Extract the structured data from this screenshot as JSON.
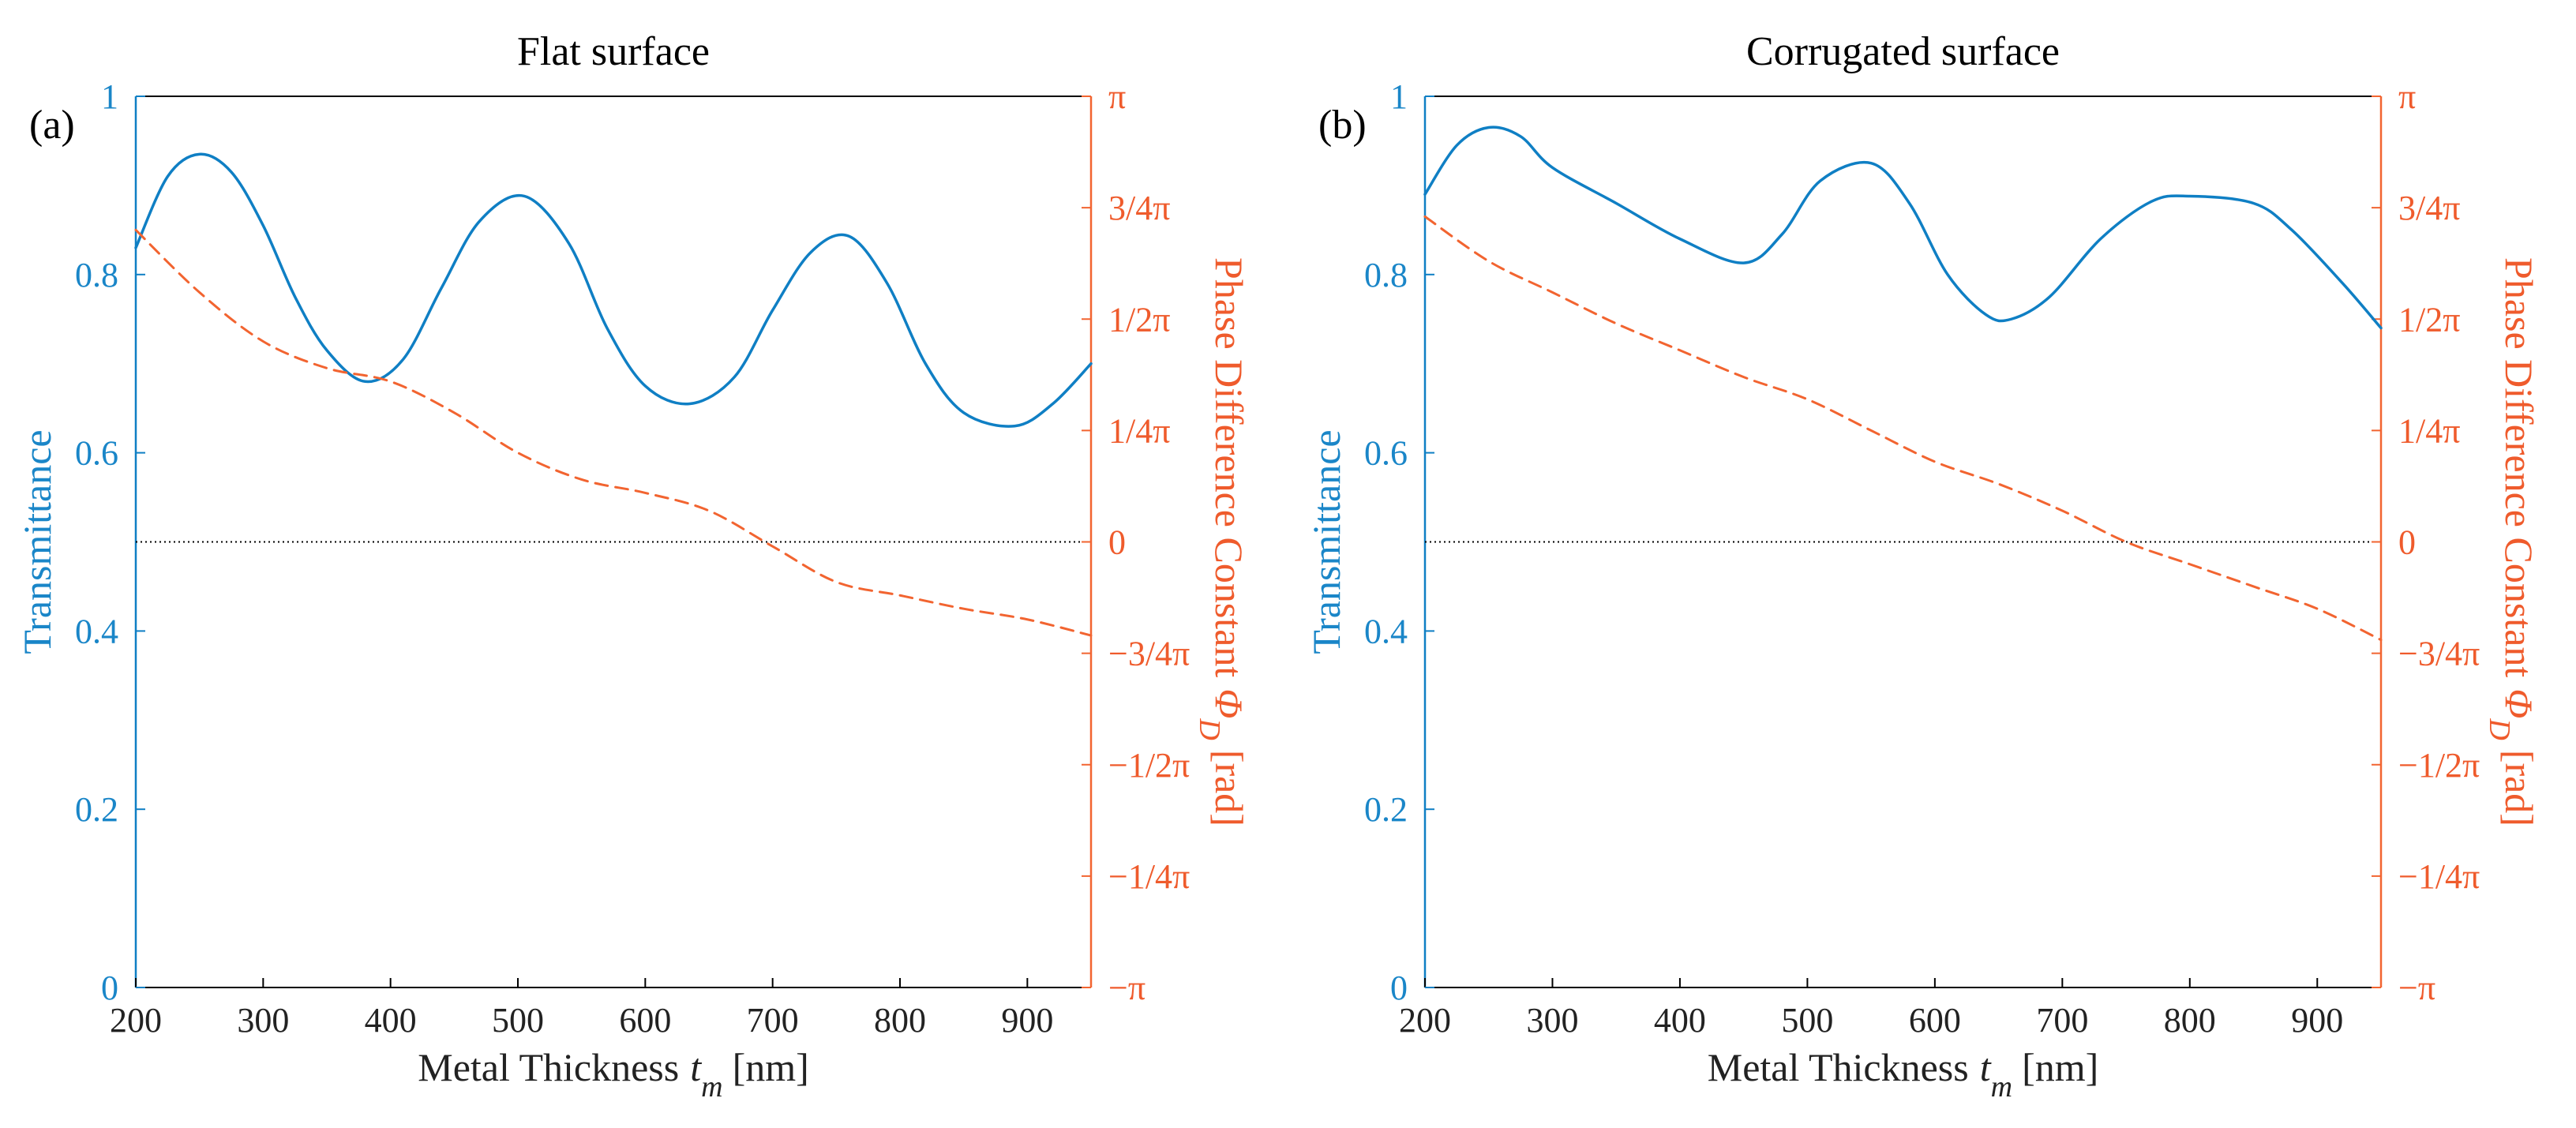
{
  "colors": {
    "transmittance": "#0f7fc4",
    "phase": "#f26430",
    "reference_line": "#000000",
    "frame": "#000000"
  },
  "chart_data": [
    {
      "type": "line",
      "panel_label": "(a)",
      "title": "Flat surface",
      "xlabel": "Metal Thickness",
      "xlabel_var": "t",
      "xlabel_sub": "m",
      "xlabel_unit": "[nm]",
      "xlim": [
        200,
        950
      ],
      "xticks": [
        200,
        300,
        400,
        500,
        600,
        700,
        800,
        900
      ],
      "ylabel_left": "Transmittance",
      "ylim_left": [
        0,
        1
      ],
      "yticks_left": [
        "0",
        "0.2",
        "0.4",
        "0.6",
        "0.8",
        "1"
      ],
      "ylabel_right": "Phase Difference Constant",
      "ylabel_right_var": "Φ",
      "ylabel_right_sub": "D",
      "ylabel_right_unit": "[rad]",
      "yticks_right": [
        "−π",
        "−1/4π",
        "−1/2π",
        "−3/4π",
        "0",
        "1/4π",
        "1/2π",
        "3/4π",
        "π"
      ],
      "reference_line": 0.5,
      "series": [
        {
          "name": "Transmittance",
          "axis": "left",
          "style": "solid",
          "x": [
            200,
            225,
            250,
            275,
            300,
            325,
            350,
            380,
            410,
            440,
            470,
            505,
            540,
            570,
            600,
            635,
            670,
            700,
            730,
            760,
            790,
            820,
            850,
            890,
            920,
            950
          ],
          "y": [
            0.83,
            0.91,
            0.935,
            0.915,
            0.855,
            0.775,
            0.715,
            0.68,
            0.705,
            0.785,
            0.86,
            0.888,
            0.835,
            0.74,
            0.675,
            0.655,
            0.685,
            0.76,
            0.825,
            0.843,
            0.79,
            0.7,
            0.645,
            0.63,
            0.655,
            0.7
          ]
        },
        {
          "name": "Phase Difference Constant",
          "axis": "right",
          "style": "dashed",
          "x": [
            200,
            250,
            300,
            350,
            400,
            450,
            500,
            550,
            600,
            650,
            700,
            750,
            800,
            850,
            900,
            950
          ],
          "y": [
            0.85,
            0.78,
            0.725,
            0.695,
            0.68,
            0.645,
            0.6,
            0.57,
            0.555,
            0.535,
            0.495,
            0.455,
            0.44,
            0.425,
            0.413,
            0.395
          ]
        }
      ]
    },
    {
      "type": "line",
      "panel_label": "(b)",
      "title": "Corrugated surface",
      "xlabel": "Metal Thickness",
      "xlabel_var": "t",
      "xlabel_sub": "m",
      "xlabel_unit": "[nm]",
      "xlim": [
        200,
        950
      ],
      "xticks": [
        200,
        300,
        400,
        500,
        600,
        700,
        800,
        900
      ],
      "ylabel_left": "Transmittance",
      "ylim_left": [
        0,
        1
      ],
      "yticks_left": [
        "0",
        "0.2",
        "0.4",
        "0.6",
        "0.8",
        "1"
      ],
      "ylabel_right": "Phase Difference Constant",
      "ylabel_right_var": "Φ",
      "ylabel_right_sub": "D",
      "ylabel_right_unit": "[rad]",
      "yticks_right": [
        "−π",
        "−1/4π",
        "−1/2π",
        "−3/4π",
        "0",
        "1/4π",
        "1/2π",
        "3/4π",
        "π"
      ],
      "reference_line": 0.5,
      "series": [
        {
          "name": "Transmittance",
          "axis": "left",
          "style": "solid",
          "x": [
            200,
            225,
            250,
            275,
            300,
            350,
            400,
            450,
            480,
            510,
            550,
            580,
            610,
            640,
            660,
            690,
            730,
            770,
            800,
            850,
            880,
            920,
            950
          ],
          "y": [
            0.89,
            0.945,
            0.965,
            0.955,
            0.92,
            0.88,
            0.84,
            0.813,
            0.845,
            0.905,
            0.925,
            0.88,
            0.8,
            0.755,
            0.75,
            0.775,
            0.84,
            0.882,
            0.888,
            0.88,
            0.85,
            0.79,
            0.74
          ]
        },
        {
          "name": "Phase Difference Constant",
          "axis": "right",
          "style": "dashed",
          "x": [
            200,
            250,
            300,
            350,
            400,
            450,
            500,
            550,
            600,
            650,
            700,
            750,
            800,
            850,
            900,
            950
          ],
          "y": [
            0.865,
            0.815,
            0.78,
            0.745,
            0.715,
            0.685,
            0.66,
            0.625,
            0.59,
            0.565,
            0.535,
            0.5,
            0.475,
            0.45,
            0.425,
            0.39
          ]
        }
      ]
    }
  ]
}
